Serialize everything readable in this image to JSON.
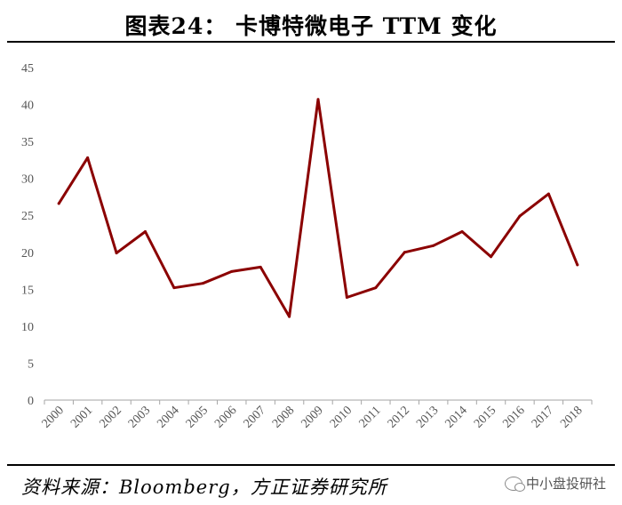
{
  "header": {
    "title": "图表24：   卡博特微电子 TTM 变化"
  },
  "footer": {
    "source": "资料来源：Bloomberg，方正证券研究所",
    "watermark": "中小盘投研社"
  },
  "chart_data": {
    "type": "line",
    "title": "图表24：   卡博特微电子 TTM 变化",
    "xlabel": "",
    "ylabel": "",
    "categories": [
      "2000",
      "2001",
      "2002",
      "2003",
      "2004",
      "2005",
      "2006",
      "2007",
      "2008",
      "2009",
      "2010",
      "2011",
      "2012",
      "2013",
      "2014",
      "2015",
      "2016",
      "2017",
      "2018"
    ],
    "series": [
      {
        "values": [
          26.6,
          32.8,
          19.9,
          22.8,
          15.2,
          15.8,
          17.4,
          18.0,
          11.3,
          40.7,
          13.9,
          15.2,
          20.0,
          20.9,
          22.8,
          19.4,
          24.9,
          27.9,
          18.3
        ]
      }
    ],
    "ylim": [
      0,
      45
    ],
    "yticks": [
      0,
      5,
      10,
      15,
      20,
      25,
      30,
      35,
      40,
      45
    ],
    "grid": false,
    "legend": "none",
    "line_color": "#8b0000"
  }
}
